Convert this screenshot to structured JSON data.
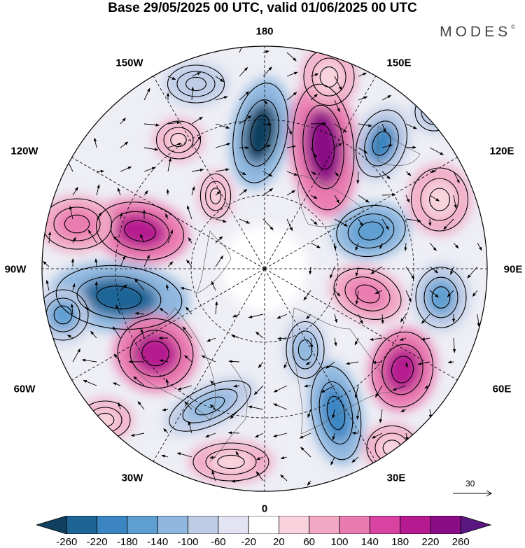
{
  "title": "Base 29/05/2025 00 UTC, valid 01/06/2025 00 UTC",
  "logo": "MODES",
  "logo_mark": "©",
  "longitude_labels": {
    "lon_180": "180",
    "lon_150w": "150W",
    "lon_150e": "150E",
    "lon_120w": "120W",
    "lon_120e": "120E",
    "lon_90w": "90W",
    "lon_90e": "90E",
    "lon_60w": "60W",
    "lon_60e": "60E",
    "lon_30w": "30W",
    "lon_30e": "30E",
    "lon_0": "0"
  },
  "reference_vector": {
    "label": "30"
  },
  "colorbar": {
    "labels": [
      "-260",
      "-220",
      "-180",
      "-140",
      "-100",
      "-60",
      "-20",
      "20",
      "60",
      "100",
      "140",
      "180",
      "220",
      "260"
    ],
    "colors": [
      "#10405f",
      "#1e6596",
      "#3b86c2",
      "#5e9fd1",
      "#8fb7df",
      "#bfcce6",
      "#e4e3f1",
      "#ffffff",
      "#f8d3dd",
      "#f1a8c4",
      "#ea7bb0",
      "#d943a2",
      "#b61a90",
      "#8b0d86",
      "#5a1780"
    ]
  }
}
